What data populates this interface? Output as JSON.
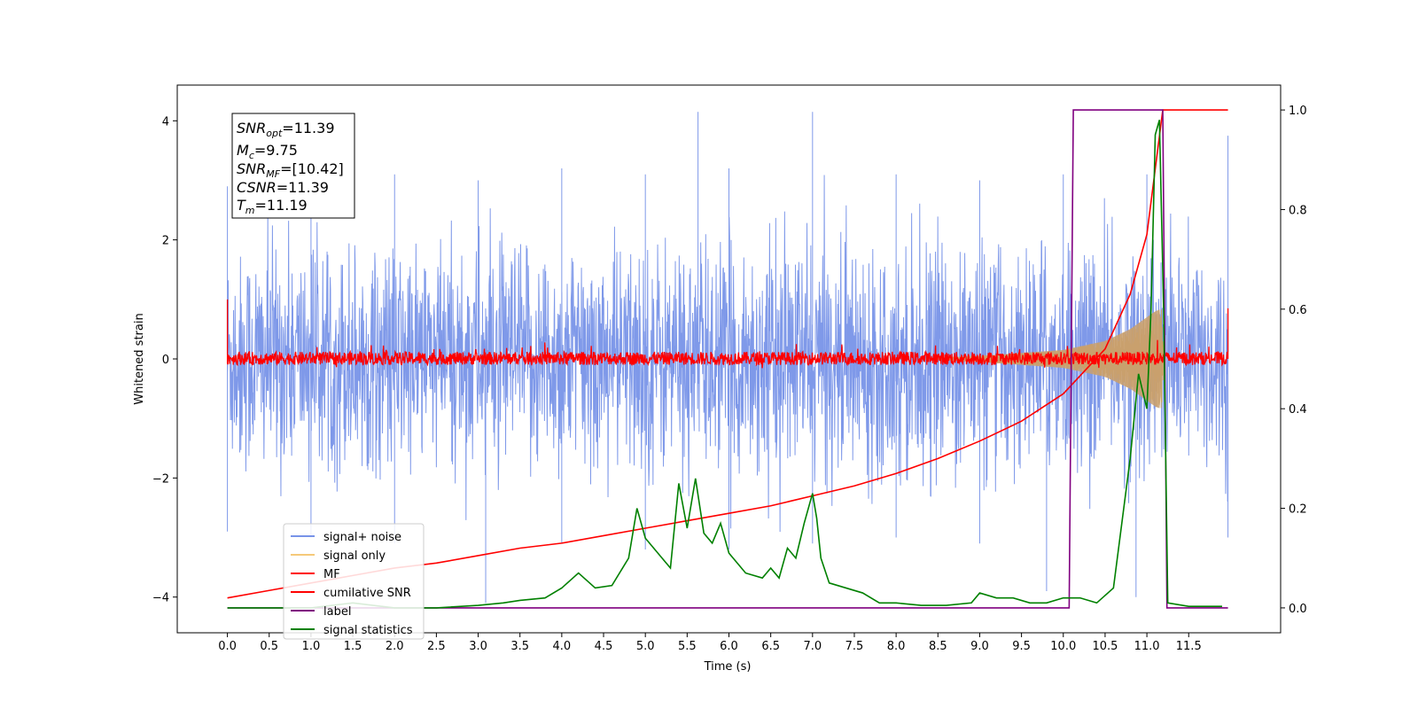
{
  "chart_data": {
    "type": "line",
    "xlabel": "Time (s)",
    "ylabel": "Whitened strain",
    "xlim": [
      -0.6,
      12.6
    ],
    "ylim": [
      -4.6,
      4.6
    ],
    "y2lim": [
      -0.05,
      1.05
    ],
    "x_ticks": [
      0.0,
      0.5,
      1.0,
      1.5,
      2.0,
      2.5,
      3.0,
      3.5,
      4.0,
      4.5,
      5.0,
      5.5,
      6.0,
      6.5,
      7.0,
      7.5,
      8.0,
      8.5,
      9.0,
      9.5,
      10.0,
      10.5,
      11.0,
      11.5
    ],
    "x_tick_labels": [
      "0.0",
      "0.5",
      "1.0",
      "1.5",
      "2.0",
      "2.5",
      "3.0",
      "3.5",
      "4.0",
      "4.5",
      "5.0",
      "5.5",
      "6.0",
      "6.5",
      "7.0",
      "7.5",
      "8.0",
      "8.5",
      "9.0",
      "9.5",
      "10.0",
      "10.5",
      "11.0",
      "11.5"
    ],
    "y_ticks": [
      -4,
      -2,
      0,
      2,
      4
    ],
    "y_tick_labels": [
      "−4",
      "−2",
      "0",
      "2",
      "4"
    ],
    "y2_ticks": [
      0.0,
      0.2,
      0.4,
      0.6,
      0.8,
      1.0
    ],
    "y2_tick_labels": [
      "0.0",
      "0.2",
      "0.4",
      "0.6",
      "0.8",
      "1.0"
    ],
    "grid": false,
    "legend_position": "lower-left",
    "info_box": {
      "snr_opt_main": "SNR",
      "snr_opt_sub": "opt",
      "snr_opt_value": "=11.39",
      "mc_main": "M",
      "mc_sub": "c",
      "mc_value": "=9.75",
      "snr_mf_main": "SNR",
      "snr_mf_sub": "MF",
      "snr_mf_value": "=[10.42]",
      "csnr_main": "CSNR",
      "csnr_value": "=11.39",
      "tm_main": "T",
      "tm_sub": "m",
      "tm_value": "=11.19"
    },
    "series": [
      {
        "name": "signal+ noise",
        "color": "#7893e8",
        "axis": "left",
        "description_only": false,
        "envelope_upper": [
          [
            0.0,
            2.9
          ],
          [
            1.0,
            3.0
          ],
          [
            2.0,
            3.1
          ],
          [
            3.0,
            3.0
          ],
          [
            4.0,
            3.2
          ],
          [
            5.0,
            3.1
          ],
          [
            5.63,
            4.15
          ],
          [
            6.0,
            3.2
          ],
          [
            7.0,
            4.15
          ],
          [
            8.0,
            3.1
          ],
          [
            9.0,
            3.0
          ],
          [
            10.0,
            3.1
          ],
          [
            11.0,
            3.1
          ],
          [
            11.97,
            3.75
          ]
        ],
        "envelope_lower": [
          [
            0.0,
            -2.9
          ],
          [
            1.0,
            -3.0
          ],
          [
            2.0,
            -3.1
          ],
          [
            3.09,
            -4.1
          ],
          [
            4.0,
            -3.1
          ],
          [
            5.0,
            -3.2
          ],
          [
            6.0,
            -3.2
          ],
          [
            7.0,
            -3.1
          ],
          [
            8.0,
            -3.0
          ],
          [
            9.0,
            -3.1
          ],
          [
            9.8,
            -3.9
          ],
          [
            10.87,
            -4.0
          ],
          [
            11.97,
            -3.0
          ]
        ]
      },
      {
        "name": "signal only",
        "color": "#f5c97a",
        "axis": "left",
        "chirp_amplitude": [
          [
            8.3,
            0.0
          ],
          [
            9.0,
            0.05
          ],
          [
            9.5,
            0.1
          ],
          [
            10.0,
            0.15
          ],
          [
            10.5,
            0.3
          ],
          [
            10.8,
            0.5
          ],
          [
            11.1,
            0.8
          ],
          [
            11.19,
            0.85
          ],
          [
            11.2,
            0.0
          ]
        ]
      },
      {
        "name": "MF",
        "color": "#ff0000",
        "axis": "left",
        "band": [
          -0.1,
          0.12
        ]
      },
      {
        "name": "cumilative SNR",
        "color": "#ff0000",
        "axis": "right",
        "x": [
          0.0,
          0.5,
          1.0,
          1.5,
          2.0,
          2.5,
          3.0,
          3.5,
          4.0,
          4.5,
          5.0,
          5.5,
          6.0,
          6.5,
          7.0,
          7.5,
          8.0,
          8.5,
          9.0,
          9.5,
          10.0,
          10.5,
          10.8,
          11.0,
          11.19,
          11.97
        ],
        "y": [
          0.02,
          0.035,
          0.05,
          0.065,
          0.08,
          0.09,
          0.105,
          0.12,
          0.13,
          0.145,
          0.16,
          0.175,
          0.19,
          0.205,
          0.225,
          0.245,
          0.27,
          0.3,
          0.335,
          0.375,
          0.43,
          0.52,
          0.63,
          0.75,
          1.0,
          1.0
        ]
      },
      {
        "name": "label",
        "color": "#800080",
        "axis": "right",
        "x": [
          0.0,
          10.07,
          10.12,
          11.19,
          11.24,
          11.97
        ],
        "y": [
          0.0,
          0.0,
          1.0,
          1.0,
          0.0,
          0.0
        ]
      },
      {
        "name": "signal statistics",
        "color": "#008000",
        "axis": "right",
        "x": [
          0.0,
          0.5,
          1.0,
          1.5,
          2.0,
          2.5,
          3.0,
          3.3,
          3.5,
          3.8,
          4.0,
          4.2,
          4.4,
          4.6,
          4.8,
          4.9,
          5.0,
          5.1,
          5.2,
          5.3,
          5.4,
          5.5,
          5.6,
          5.7,
          5.8,
          5.9,
          6.0,
          6.2,
          6.4,
          6.5,
          6.6,
          6.7,
          6.8,
          6.9,
          7.0,
          7.05,
          7.1,
          7.2,
          7.4,
          7.6,
          7.8,
          8.0,
          8.3,
          8.6,
          8.9,
          9.0,
          9.2,
          9.4,
          9.6,
          9.8,
          10.0,
          10.2,
          10.4,
          10.6,
          10.8,
          10.9,
          11.0,
          11.05,
          11.1,
          11.15,
          11.2,
          11.25,
          11.5,
          11.9
        ],
        "y": [
          0.0,
          0.0,
          0.0,
          0.01,
          0.0,
          0.0,
          0.005,
          0.01,
          0.015,
          0.02,
          0.04,
          0.07,
          0.04,
          0.045,
          0.1,
          0.2,
          0.14,
          0.12,
          0.1,
          0.08,
          0.25,
          0.16,
          0.26,
          0.15,
          0.13,
          0.17,
          0.11,
          0.07,
          0.06,
          0.08,
          0.06,
          0.12,
          0.1,
          0.17,
          0.23,
          0.18,
          0.1,
          0.05,
          0.04,
          0.03,
          0.01,
          0.01,
          0.005,
          0.005,
          0.01,
          0.03,
          0.02,
          0.02,
          0.01,
          0.01,
          0.02,
          0.02,
          0.01,
          0.04,
          0.3,
          0.47,
          0.4,
          0.6,
          0.95,
          0.98,
          0.6,
          0.01,
          0.003,
          0.003
        ]
      }
    ]
  }
}
